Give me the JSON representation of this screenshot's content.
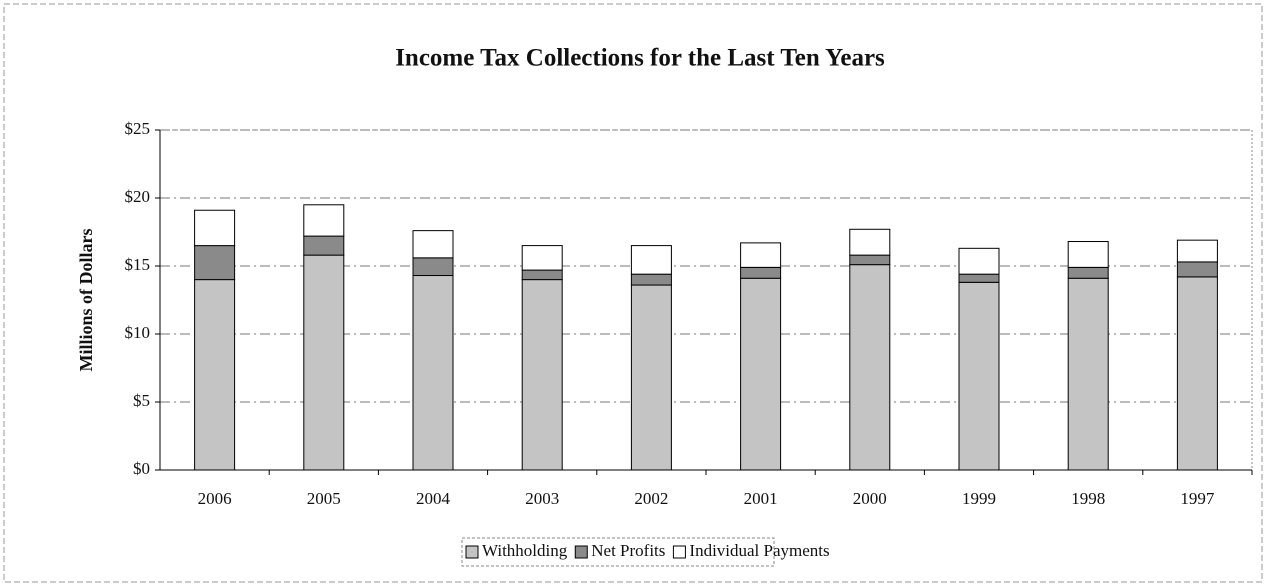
{
  "chart_data": {
    "type": "stacked_bar",
    "title": "Income Tax Collections for the Last Ten Years",
    "y_label": "Millions of Dollars",
    "categories": [
      "2006",
      "2005",
      "2004",
      "2003",
      "2002",
      "2001",
      "2000",
      "1999",
      "1998",
      "1997"
    ],
    "series": [
      {
        "name": "Withholding",
        "color": "#c4c4c4",
        "values": [
          14.0,
          15.8,
          14.3,
          14.0,
          13.6,
          14.1,
          15.1,
          13.8,
          14.1,
          14.2
        ]
      },
      {
        "name": "Net Profits",
        "color": "#8a8a8a",
        "values": [
          2.5,
          1.4,
          1.3,
          0.7,
          0.8,
          0.8,
          0.7,
          0.6,
          0.8,
          1.1
        ]
      },
      {
        "name": "Individual Payments",
        "color": "#ffffff",
        "values": [
          2.6,
          2.3,
          2.0,
          1.8,
          2.1,
          1.8,
          1.9,
          1.9,
          1.9,
          1.6
        ]
      }
    ],
    "ylim": [
      0,
      25
    ],
    "yticks": [
      {
        "value": 0,
        "label": "$0"
      },
      {
        "value": 5,
        "label": "$5"
      },
      {
        "value": 10,
        "label": "$10"
      },
      {
        "value": 15,
        "label": "$15"
      },
      {
        "value": 20,
        "label": "$20"
      },
      {
        "value": 25,
        "label": "$25"
      }
    ],
    "grid": true,
    "legend": "bottom"
  }
}
